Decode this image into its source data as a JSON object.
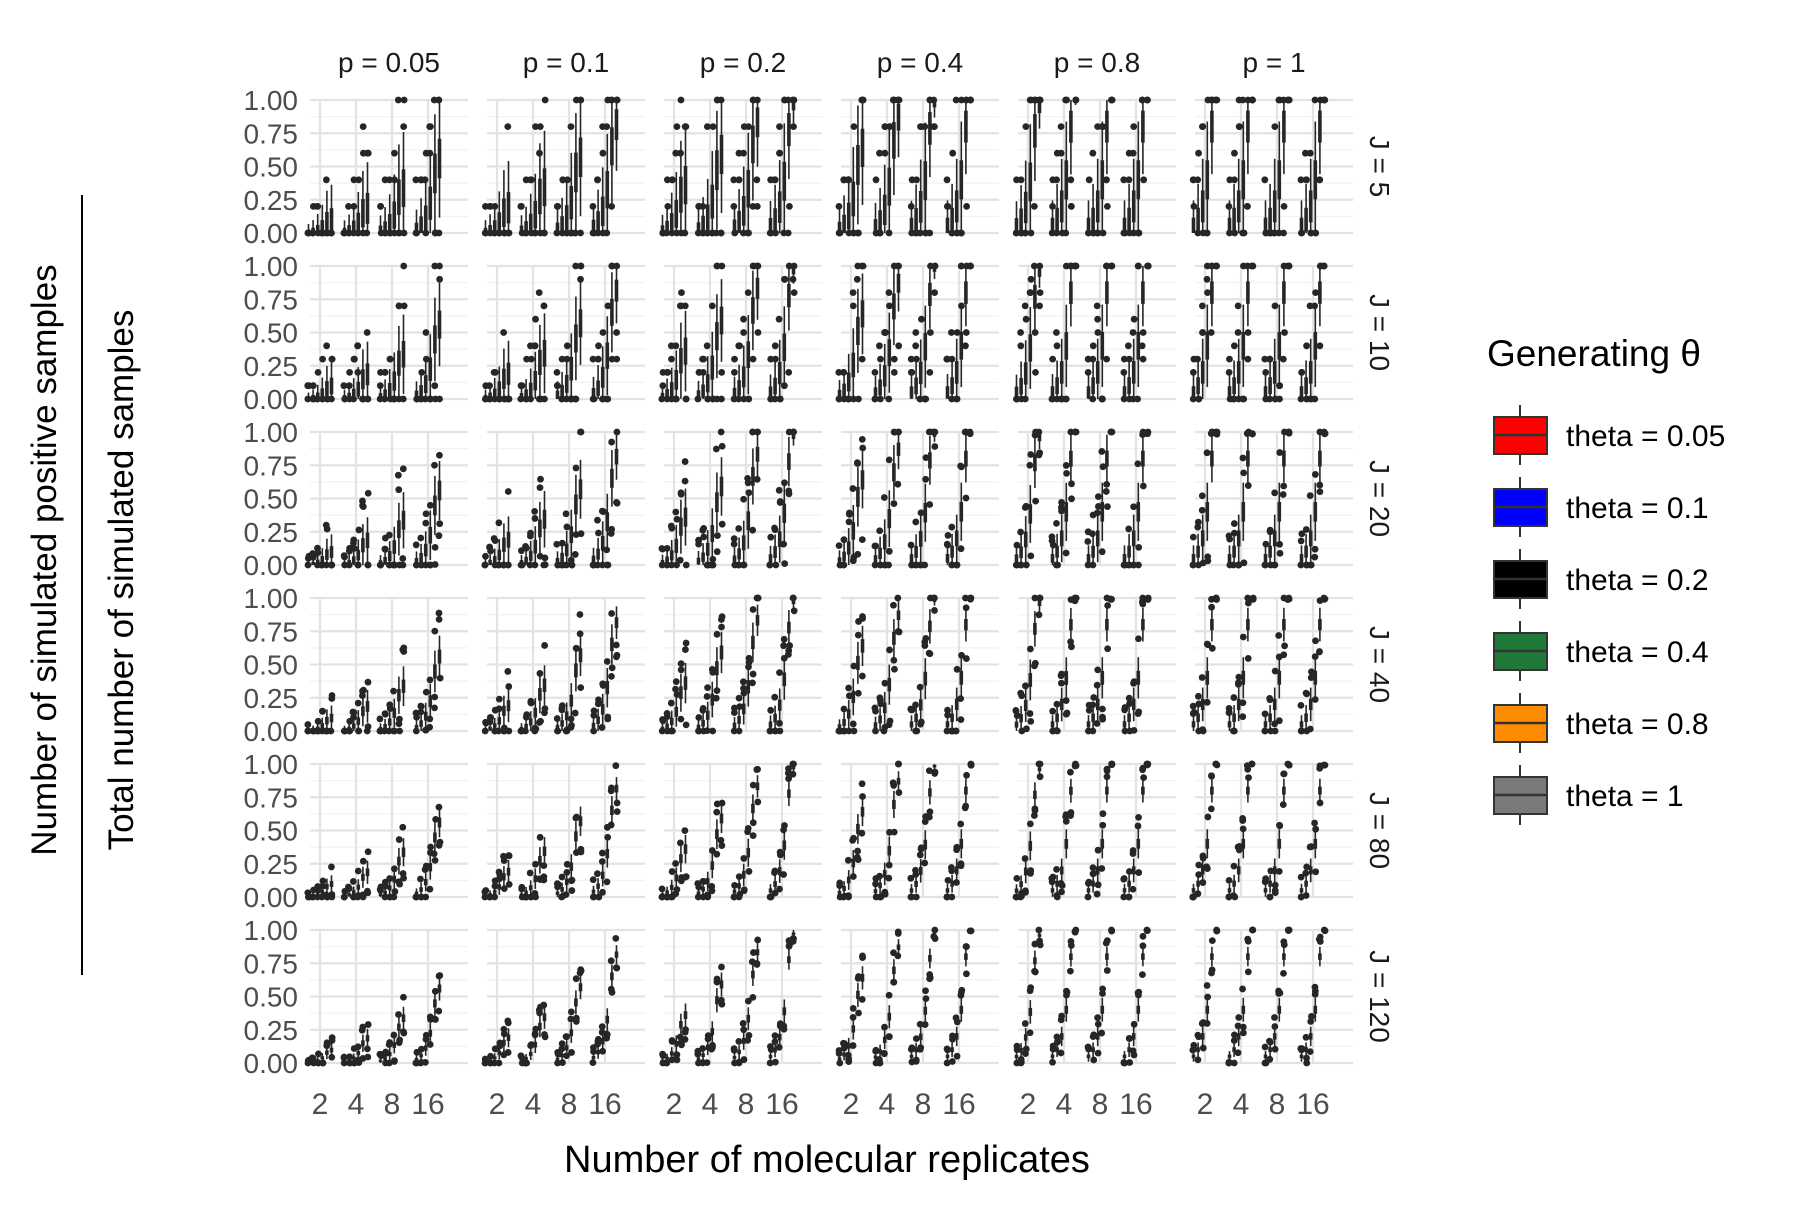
{
  "chart_data": {
    "type": "boxplot",
    "facets": {
      "cols": [
        "p = 0.05",
        "p = 0.1",
        "p = 0.2",
        "p = 0.4",
        "p = 0.8",
        "p = 1"
      ],
      "rows": [
        "J = 5",
        "J = 10",
        "J = 20",
        "J = 40",
        "J = 80",
        "J = 120"
      ]
    },
    "x": {
      "label": "Number of molecular replicates",
      "categories": [
        "2",
        "4",
        "8",
        "16"
      ]
    },
    "y": {
      "label_numerator": "Number of simulated positive samples",
      "label_denominator": "Total number of simulated samples",
      "ylim": [
        0,
        1
      ],
      "ticks": [
        "0.00",
        "0.25",
        "0.50",
        "0.75",
        "1.00"
      ]
    },
    "grid": true,
    "legend": {
      "title": "Generating θ",
      "position": "right",
      "entries": [
        {
          "name": "theta = 0.05",
          "color": "#ff0000"
        },
        {
          "name": "theta = 0.1",
          "color": "#0000ff"
        },
        {
          "name": "theta = 0.2",
          "color": "#000000"
        },
        {
          "name": "theta = 0.4",
          "color": "#1f7a3a"
        },
        {
          "name": "theta = 0.8",
          "color": "#ff8c00"
        },
        {
          "name": "theta = 1",
          "color": "#7a7a7a"
        }
      ]
    },
    "thetas": [
      0.05,
      0.1,
      0.2,
      0.4,
      0.8,
      1
    ],
    "mark_color": "#262626"
  }
}
